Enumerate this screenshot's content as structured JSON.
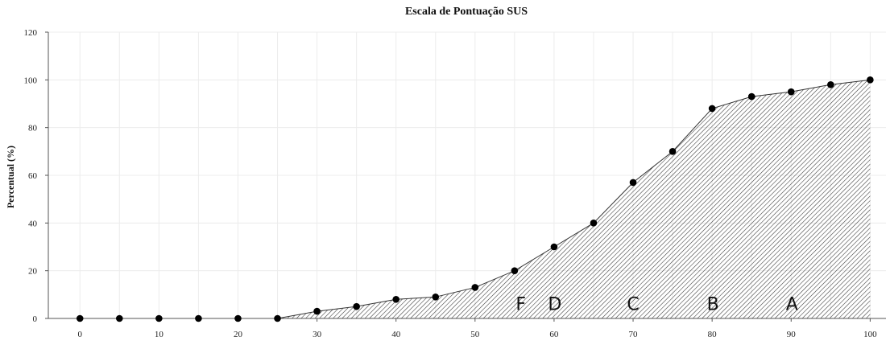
{
  "chart_data": {
    "type": "area",
    "title": "Escala de Pontuação SUS",
    "xlabel": "",
    "ylabel": "Percentual (%)",
    "xlim": [
      -4,
      102
    ],
    "ylim": [
      0,
      120
    ],
    "x_ticks": [
      0,
      10,
      20,
      30,
      40,
      50,
      60,
      70,
      80,
      90,
      100
    ],
    "y_ticks": [
      0,
      20,
      40,
      60,
      80,
      100,
      120
    ],
    "grid": true,
    "fill_pattern": "diagonal-hatch",
    "series": [
      {
        "x": [
          0,
          5,
          10,
          15,
          20,
          25,
          30,
          35,
          40,
          45,
          50,
          55,
          60,
          65,
          70,
          75,
          80,
          85,
          90,
          95,
          100
        ],
        "y": [
          0,
          0,
          0,
          0,
          0,
          0,
          3,
          5,
          8,
          9,
          13,
          20,
          30,
          40,
          57,
          70,
          88,
          93,
          95,
          98,
          100
        ]
      }
    ],
    "annotations": [
      {
        "text": "F",
        "x": 55.8,
        "y": 3.5
      },
      {
        "text": "D",
        "x": 60.1,
        "y": 3.5
      },
      {
        "text": "C",
        "x": 70.0,
        "y": 3.5
      },
      {
        "text": "B",
        "x": 80.1,
        "y": 3.5
      },
      {
        "text": "A",
        "x": 90.1,
        "y": 3.5
      }
    ],
    "colors": {
      "line": "#333333",
      "point": "#000000",
      "hatch": "#333333"
    }
  }
}
